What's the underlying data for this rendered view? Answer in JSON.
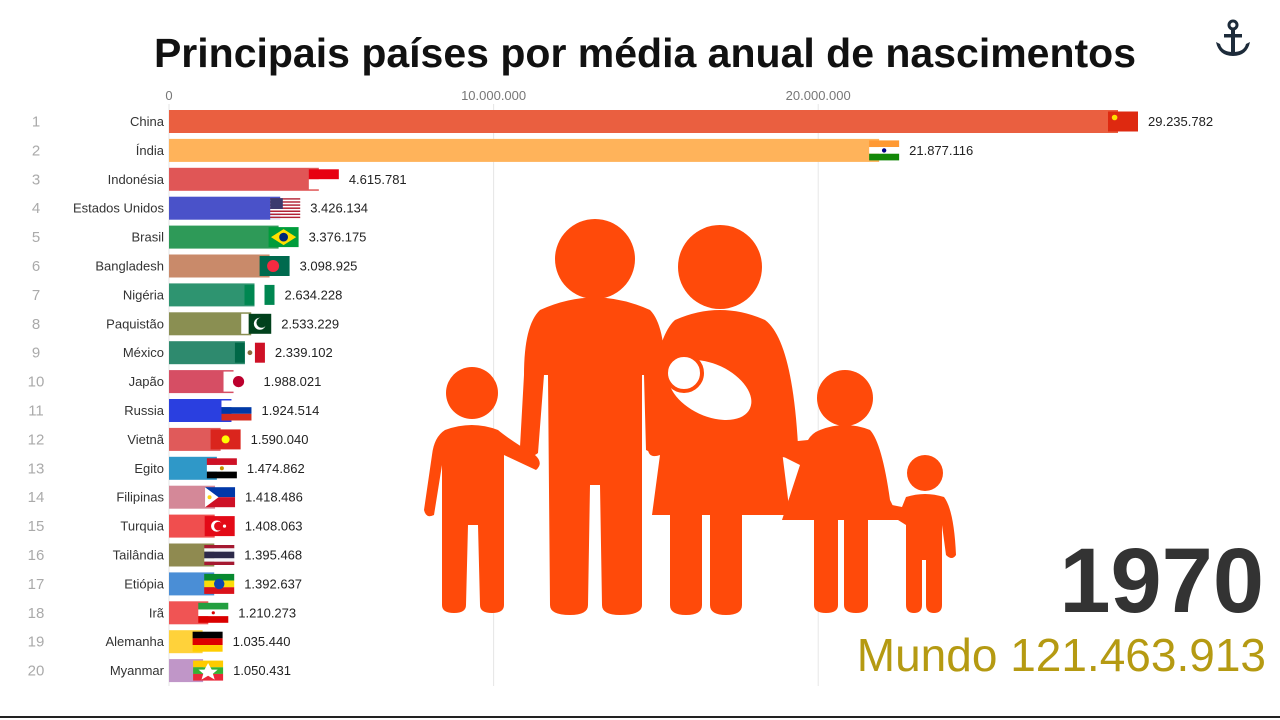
{
  "chart_data": {
    "type": "bar",
    "title": "Principais países por média anual de nascimentos",
    "xlim": [
      0,
      29235782
    ],
    "ticks": [
      {
        "value": 0,
        "label": "0"
      },
      {
        "value": 10000000,
        "label": "10.000.000"
      },
      {
        "value": 20000000,
        "label": "20.000.000"
      }
    ],
    "year": "1970",
    "world_label": "Mundo",
    "world_value": "121.463.913",
    "rows": [
      {
        "rank": "1",
        "name": "China",
        "value": 29235782,
        "label": "29.235.782",
        "color": "#ea5f40",
        "flag": "china"
      },
      {
        "rank": "2",
        "name": "Índia",
        "value": 21877116,
        "label": "21.877.116",
        "color": "#ffb35a",
        "flag": "india"
      },
      {
        "rank": "3",
        "name": "Indonésia",
        "value": 4615781,
        "label": "4.615.781",
        "color": "#e05656",
        "flag": "indonesia"
      },
      {
        "rank": "4",
        "name": "Estados Unidos",
        "value": 3426134,
        "label": "3.426.134",
        "color": "#4a52c9",
        "flag": "usa"
      },
      {
        "rank": "5",
        "name": "Brasil",
        "value": 3376175,
        "label": "3.376.175",
        "color": "#2e9a58",
        "flag": "brazil"
      },
      {
        "rank": "6",
        "name": "Bangladesh",
        "value": 3098925,
        "label": "3.098.925",
        "color": "#c98a6a",
        "flag": "bangladesh"
      },
      {
        "rank": "7",
        "name": "Nigéria",
        "value": 2634228,
        "label": "2.634.228",
        "color": "#2e9470",
        "flag": "nigeria"
      },
      {
        "rank": "8",
        "name": "Paquistão",
        "value": 2533229,
        "label": "2.533.229",
        "color": "#8a8f52",
        "flag": "pakistan"
      },
      {
        "rank": "9",
        "name": "México",
        "value": 2339102,
        "label": "2.339.102",
        "color": "#2e8a6e",
        "flag": "mexico"
      },
      {
        "rank": "10",
        "name": "Japão",
        "value": 1988021,
        "label": "1.988.021",
        "color": "#d64e64",
        "flag": "japan"
      },
      {
        "rank": "11",
        "name": "Russia",
        "value": 1924514,
        "label": "1.924.514",
        "color": "#2a3fe0",
        "flag": "russia"
      },
      {
        "rank": "12",
        "name": "Vietnã",
        "value": 1590040,
        "label": "1.590.040",
        "color": "#e05a5a",
        "flag": "vietnam"
      },
      {
        "rank": "13",
        "name": "Egito",
        "value": 1474862,
        "label": "1.474.862",
        "color": "#2f98c8",
        "flag": "egypt"
      },
      {
        "rank": "14",
        "name": "Filipinas",
        "value": 1418486,
        "label": "1.418.486",
        "color": "#d48898",
        "flag": "philippines"
      },
      {
        "rank": "15",
        "name": "Turquia",
        "value": 1408063,
        "label": "1.408.063",
        "color": "#f04e4e",
        "flag": "turkey"
      },
      {
        "rank": "16",
        "name": "Tailândia",
        "value": 1395468,
        "label": "1.395.468",
        "color": "#8f8a50",
        "flag": "thailand"
      },
      {
        "rank": "17",
        "name": "Etiópia",
        "value": 1392637,
        "label": "1.392.637",
        "color": "#4a8ed6",
        "flag": "ethiopia"
      },
      {
        "rank": "18",
        "name": "Irã",
        "value": 1210273,
        "label": "1.210.273",
        "color": "#f05454",
        "flag": "iran"
      },
      {
        "rank": "19",
        "name": "Alemanha",
        "value": 1035440,
        "label": "1.035.440",
        "color": "#ffd23a",
        "flag": "germany"
      },
      {
        "rank": "20",
        "name": "Myanmar",
        "value": 1050431,
        "label": "1.050.431",
        "color": "#c096c8",
        "flag": "myanmar"
      }
    ]
  },
  "icons": {
    "logo": "anchor-icon",
    "illustration": "family-icon",
    "illustration_color": "#ff4a0a"
  }
}
